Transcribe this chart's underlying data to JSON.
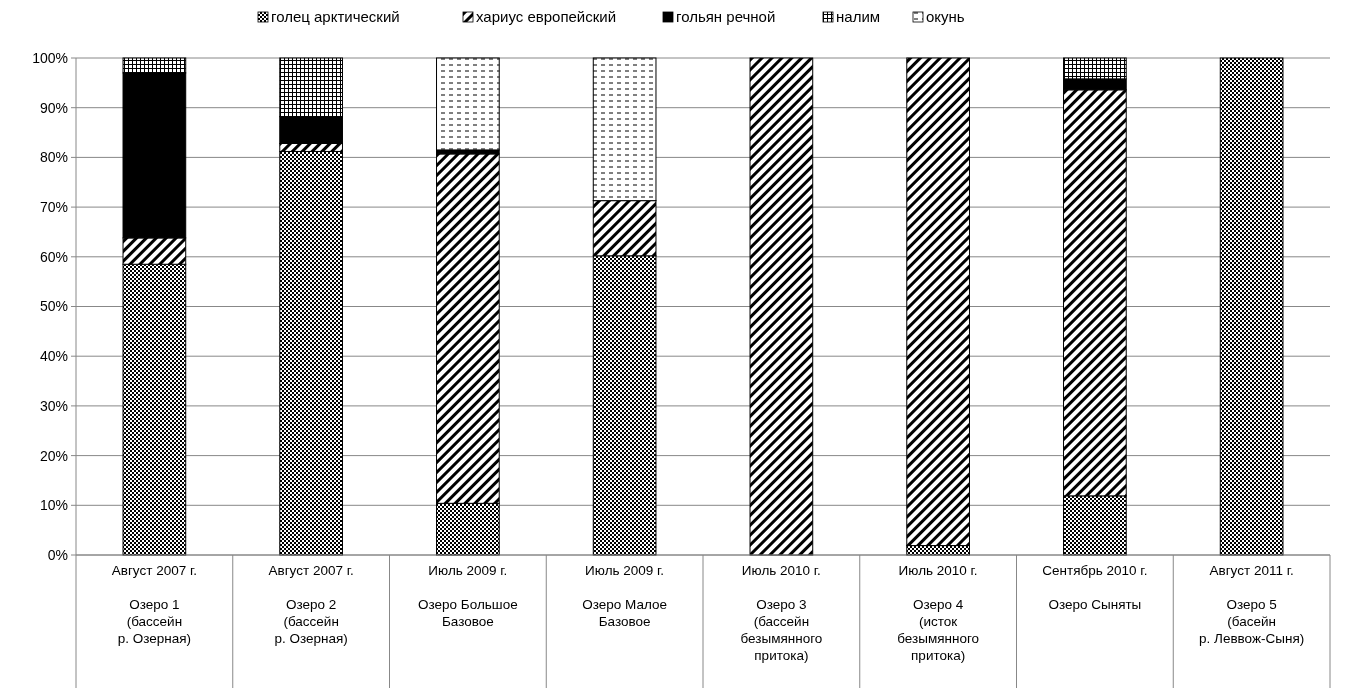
{
  "chart_data": {
    "type": "bar",
    "stacked": true,
    "legend": "top",
    "grid": "y",
    "categories": [
      "Август 2007 г.\n\nОзеро 1\n(бассейн\nр. Озерная)",
      "Август 2007 г.\n\nОзеро 2\n(бассейн\nр. Озерная)",
      "Июль 2009 г.\n\nОзеро Большое\nБазовое",
      "Июль 2009 г.\n\nОзеро Малое\nБазовое",
      "Июль 2010 г.\n\nОзеро 3\n(бассейн\nбезымянного\nпритока)",
      "Июль 2010 г.\n\nОзеро 4\n(исток\nбезымянного\nпритока)",
      "Сентябрь 2010 г.\n\nОзеро Сыняты",
      "Август 2011 г.\n\nОзеро 5\n(басейн\nр. Леввож-Сыня)"
    ],
    "series": [
      {
        "name": "голец арктический",
        "color": "#000000",
        "values": [
          58.5,
          81.2,
          10.4,
          60.2,
          0,
          1.9,
          11.9,
          100
        ]
      },
      {
        "name": "хариус европейский",
        "color": "#000000",
        "values": [
          5.3,
          1.6,
          70.3,
          11.1,
          100,
          98.1,
          81.7,
          0
        ]
      },
      {
        "name": "гольян речной",
        "color": "#000000",
        "values": [
          33.2,
          5.4,
          0.8,
          0,
          0,
          0,
          2.2,
          0
        ]
      },
      {
        "name": "налим",
        "color": "#000000",
        "values": [
          3.0,
          11.8,
          0,
          0,
          0,
          0,
          4.2,
          0
        ]
      },
      {
        "name": "окунь",
        "color": "#000000",
        "values": [
          0,
          0,
          18.5,
          28.7,
          0,
          0,
          0,
          0
        ]
      }
    ],
    "ylim": [
      0,
      100
    ],
    "yticks": [
      {
        "value": 0,
        "label": "0%"
      },
      {
        "value": 10,
        "label": "10%"
      },
      {
        "value": 20,
        "label": "20%"
      },
      {
        "value": 30,
        "label": "30%"
      },
      {
        "value": 40,
        "label": "40%"
      },
      {
        "value": 50,
        "label": "50%"
      },
      {
        "value": 60,
        "label": "60%"
      },
      {
        "value": 70,
        "label": "70%"
      },
      {
        "value": 80,
        "label": "80%"
      },
      {
        "value": 90,
        "label": "90%"
      },
      {
        "value": 100,
        "label": "100%"
      }
    ]
  }
}
